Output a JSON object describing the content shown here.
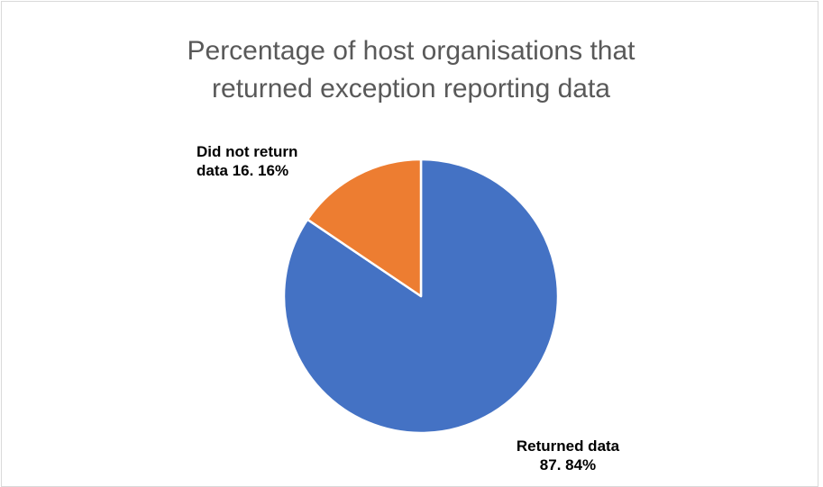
{
  "chart_data": {
    "type": "pie",
    "title": "Percentage of host organisations that returned exception reporting data",
    "categories": [
      "Returned data",
      "Did not return data"
    ],
    "values": [
      87,
      16
    ],
    "value_labels": [
      "87. 84%",
      "16. 16%"
    ],
    "colors": [
      "#4472c4",
      "#ed7d31"
    ]
  }
}
